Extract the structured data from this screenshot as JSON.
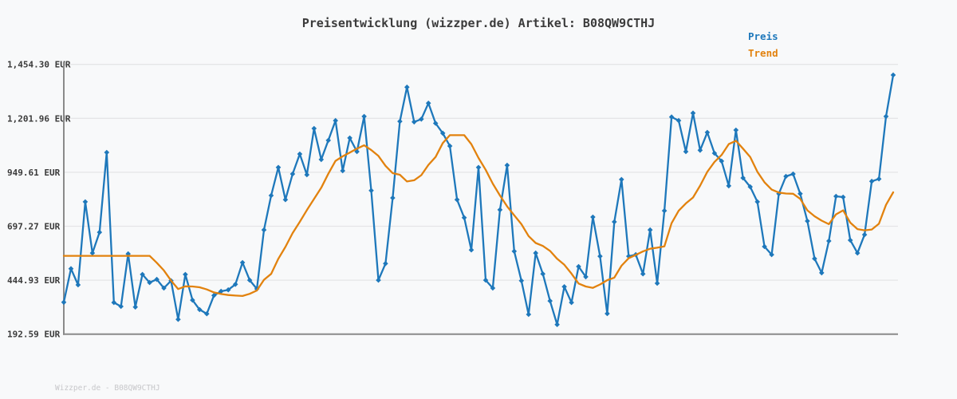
{
  "title": "Preisentwicklung (wizzper.de) Artikel: B08QW9CTHJ",
  "watermark": "Wizzper.de - B08QW9CTHJ",
  "legend": {
    "items": [
      {
        "label": "Preis",
        "color": "#1e78bb"
      },
      {
        "label": "Trend",
        "color": "#e2820e"
      }
    ]
  },
  "y_axis": {
    "unit": "EUR",
    "tick_labels": [
      "1,454.30 EUR",
      "1,201.96 EUR",
      "949.61 EUR",
      "697.27 EUR",
      "444.93 EUR",
      "192.59 EUR"
    ],
    "tick_values": [
      1454.3,
      1201.96,
      949.61,
      697.27,
      444.93,
      192.59
    ]
  },
  "chart_data": {
    "type": "line",
    "title": "Preisentwicklung (wizzper.de) Artikel: B08QW9CTHJ",
    "xlabel": "",
    "ylabel": "EUR",
    "ylim": [
      192.59,
      1454.3
    ],
    "grid": "horizontal",
    "legend_position": "top-right",
    "x_tick_labels": "none",
    "series": [
      {
        "name": "Preis",
        "color": "#1e78bb",
        "marker": "diamond",
        "values": [
          305,
          475,
          393,
          813,
          554,
          659,
          1063,
          304,
          284,
          550,
          281,
          446,
          405,
          421,
          377,
          414,
          219,
          446,
          316,
          268,
          247,
          340,
          361,
          368,
          396,
          506,
          417,
          373,
          671,
          845,
          987,
          824,
          954,
          1055,
          950,
          1184,
          1027,
          1124,
          1224,
          970,
          1136,
          1067,
          1245,
          870,
          417,
          501,
          833,
          1220,
          1393,
          1217,
          1231,
          1312,
          1210,
          1160,
          1095,
          824,
          733,
          570,
          987,
          417,
          377,
          773,
          998,
          563,
          414,
          244,
          554,
          449,
          312,
          192.59,
          384,
          304,
          486,
          434,
          736,
          538,
          248,
          712,
          926,
          538,
          546,
          449,
          671,
          401,
          768,
          1242,
          1224,
          1067,
          1262,
          1074,
          1164,
          1059,
          1019,
          894,
          1176,
          934,
          889,
          813,
          587,
          546,
          854,
          942,
          954,
          854,
          716,
          526,
          454,
          615,
          841,
          837,
          619,
          554,
          647,
          917,
          929,
          1245,
          1454.3
        ]
      },
      {
        "name": "Trend",
        "color": "#e2820e",
        "marker": "none",
        "values": [
          540,
          540,
          540,
          540,
          540,
          540,
          540,
          540,
          540,
          540,
          540,
          540,
          540,
          505,
          466,
          415,
          372,
          386,
          385,
          381,
          370,
          355,
          347,
          342,
          339,
          337,
          348,
          365,
          419,
          449,
          525,
          585,
          655,
          712,
          771,
          828,
          884,
          955,
          1020,
          1043,
          1062,
          1082,
          1099,
          1075,
          1045,
          995,
          958,
          950,
          916,
          922,
          948,
          1000,
          1040,
          1110,
          1150,
          1150,
          1150,
          1105,
          1035,
          975,
          905,
          845,
          790,
          745,
          700,
          640,
          605,
          590,
          565,
          525,
          495,
          450,
          400,
          385,
          378,
          395,
          417,
          430,
          490,
          528,
          545,
          562,
          576,
          581,
          588,
          705,
          768,
          805,
          835,
          895,
          965,
          1015,
          1050,
          1105,
          1122,
          1082,
          1040,
          965,
          912,
          875,
          860,
          855,
          854,
          828,
          770,
          740,
          718,
          700,
          750,
          770,
          708,
          675,
          669,
          673,
          702,
          798,
          861
        ]
      }
    ]
  }
}
